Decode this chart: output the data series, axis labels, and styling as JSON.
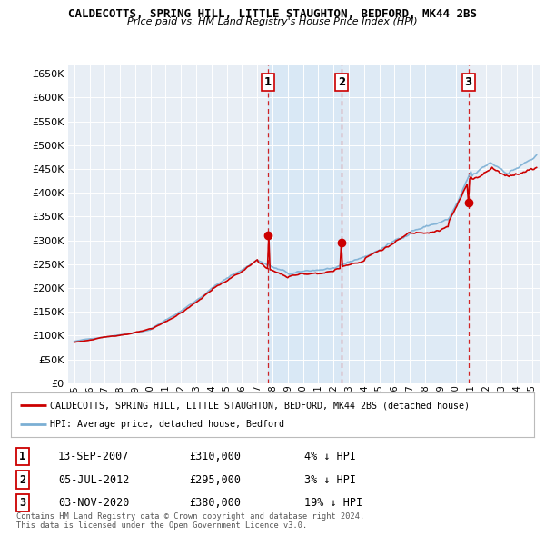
{
  "title": "CALDECOTTS, SPRING HILL, LITTLE STAUGHTON, BEDFORD, MK44 2BS",
  "subtitle": "Price paid vs. HM Land Registry's House Price Index (HPI)",
  "legend_line1": "CALDECOTTS, SPRING HILL, LITTLE STAUGHTON, BEDFORD, MK44 2BS (detached house)",
  "legend_line2": "HPI: Average price, detached house, Bedford",
  "footer1": "Contains HM Land Registry data © Crown copyright and database right 2024.",
  "footer2": "This data is licensed under the Open Government Licence v3.0.",
  "transactions": [
    {
      "num": 1,
      "date": "13-SEP-2007",
      "price": "£310,000",
      "hpi_diff": "4% ↓ HPI"
    },
    {
      "num": 2,
      "date": "05-JUL-2012",
      "price": "£295,000",
      "hpi_diff": "3% ↓ HPI"
    },
    {
      "num": 3,
      "date": "03-NOV-2020",
      "price": "£380,000",
      "hpi_diff": "19% ↓ HPI"
    }
  ],
  "transaction_years": [
    2007.71,
    2012.51,
    2020.84
  ],
  "transaction_prices": [
    310000,
    295000,
    380000
  ],
  "hpi_color": "#7bafd4",
  "price_color": "#cc0000",
  "dashed_line_color": "#cc0000",
  "shade_color": "#d0e4f5",
  "background_color": "#ffffff",
  "chart_bg_color": "#e8eef5",
  "grid_color": "#ffffff",
  "ylim": [
    0,
    670000
  ],
  "yticks": [
    0,
    50000,
    100000,
    150000,
    200000,
    250000,
    300000,
    350000,
    400000,
    450000,
    500000,
    550000,
    600000,
    650000
  ],
  "xlim": [
    1994.6,
    2025.5
  ],
  "xtick_years": [
    1995,
    1996,
    1997,
    1998,
    1999,
    2000,
    2001,
    2002,
    2003,
    2004,
    2005,
    2006,
    2007,
    2008,
    2009,
    2010,
    2011,
    2012,
    2013,
    2014,
    2015,
    2016,
    2017,
    2018,
    2019,
    2020,
    2021,
    2022,
    2023,
    2024,
    2025
  ]
}
